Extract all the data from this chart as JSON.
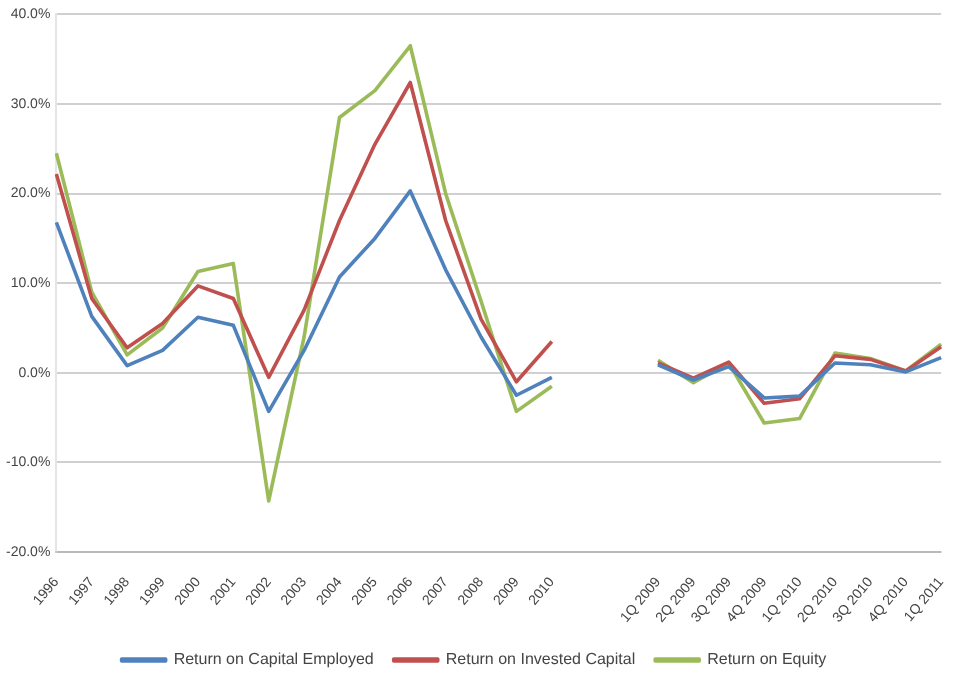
{
  "chart_data": {
    "type": "line",
    "categories": [
      "1996",
      "1997",
      "1998",
      "1999",
      "2000",
      "2001",
      "2002",
      "2003",
      "2004",
      "2005",
      "2006",
      "2007",
      "2008",
      "2009",
      "2010",
      null,
      null,
      "1Q 2009",
      "2Q 2009",
      "3Q 2009",
      "4Q 2009",
      "1Q 2010",
      "2Q 2010",
      "3Q 2010",
      "4Q 2010",
      "1Q 2011"
    ],
    "series": [
      {
        "name": "Return on Capital Employed",
        "color": "#4f81bd",
        "values": [
          16.8,
          6.3,
          0.8,
          2.5,
          6.2,
          5.3,
          -4.3,
          2.5,
          10.7,
          15,
          20.3,
          11.5,
          4,
          -2.5,
          -0.5,
          null,
          null,
          0.9,
          -0.8,
          0.7,
          -2.8,
          -2.6,
          1.1,
          0.9,
          0.1,
          1.7
        ]
      },
      {
        "name": "Return on Invested Capital",
        "color": "#c0504d",
        "values": [
          22.2,
          8.3,
          2.8,
          5.5,
          9.7,
          8.3,
          -0.5,
          7,
          17,
          25.5,
          32.4,
          17,
          6,
          -1,
          3.5,
          null,
          null,
          1.1,
          -0.6,
          1.2,
          -3.4,
          -2.9,
          1.9,
          1.5,
          0.2,
          2.9
        ]
      },
      {
        "name": "Return on Equity",
        "color": "#9bbb59",
        "values": [
          24.5,
          9,
          2,
          5,
          11.3,
          12.2,
          -14.3,
          4,
          28.5,
          31.5,
          36.5,
          20,
          8,
          -4.3,
          -1.5,
          null,
          null,
          1.4,
          -1.1,
          1.1,
          -5.6,
          -5.1,
          2.2,
          1.6,
          0.2,
          3.2
        ]
      }
    ],
    "ylim": [
      -20,
      40
    ],
    "yticks": [
      {
        "value": -20,
        "label": "-20.0%"
      },
      {
        "value": -10,
        "label": "-10.0%"
      },
      {
        "value": 0,
        "label": "0.0%"
      },
      {
        "value": 10,
        "label": "10.0%"
      },
      {
        "value": 20,
        "label": "20.0%"
      },
      {
        "value": 30,
        "label": "30.0%"
      },
      {
        "value": 40,
        "label": "40.0%"
      }
    ],
    "grid": "y",
    "legend": "bottom",
    "marker": "none",
    "line_style": "solid"
  }
}
